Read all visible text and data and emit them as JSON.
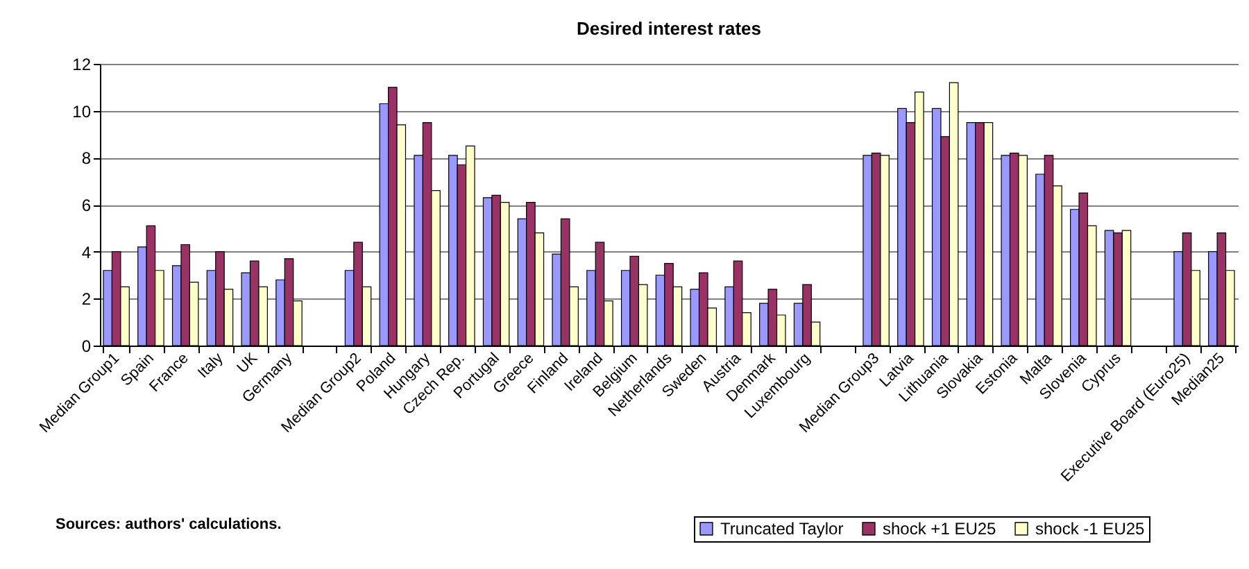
{
  "chart_data": {
    "type": "bar",
    "title": "Desired interest rates",
    "categories": [
      "Median Group1",
      "Spain",
      "France",
      "Italy",
      "UK",
      "Germany",
      null,
      "Median Group2",
      "Poland",
      "Hungary",
      "Czech Rep.",
      "Portugal",
      "Greece",
      "Finland",
      "Ireland",
      "Belgium",
      "Netherlands",
      "Sweden",
      "Austria",
      "Denmark",
      "Luxembourg",
      null,
      "Median Group3",
      "Latvia",
      "Lithuania",
      "Slovakia",
      "Estonia",
      "Malta",
      "Slovenia",
      "Cyprus",
      null,
      "Executive Board (Euro25)",
      "Median25"
    ],
    "series": [
      {
        "name": "Truncated Taylor",
        "color": "#9999ff",
        "values": [
          3.2,
          4.2,
          3.4,
          3.2,
          3.1,
          2.8,
          null,
          3.2,
          10.3,
          8.1,
          8.1,
          6.3,
          5.4,
          3.9,
          3.2,
          3.2,
          3.0,
          2.4,
          2.5,
          1.8,
          1.8,
          null,
          8.1,
          10.1,
          10.1,
          9.5,
          8.1,
          7.3,
          5.8,
          4.9,
          null,
          4.0,
          4.0
        ]
      },
      {
        "name": "shock +1 EU25",
        "color": "#993366",
        "values": [
          4.0,
          5.1,
          4.3,
          4.0,
          3.6,
          3.7,
          null,
          4.4,
          11.0,
          9.5,
          7.7,
          6.4,
          6.1,
          5.4,
          4.4,
          3.8,
          3.5,
          3.1,
          3.6,
          2.4,
          2.6,
          null,
          8.2,
          9.5,
          8.9,
          9.5,
          8.2,
          8.1,
          6.5,
          4.8,
          null,
          4.8,
          4.8
        ]
      },
      {
        "name": "shock -1 EU25",
        "color": "#ffffcc",
        "values": [
          2.5,
          3.2,
          2.7,
          2.4,
          2.5,
          1.9,
          null,
          2.5,
          9.4,
          6.6,
          8.5,
          6.1,
          4.8,
          2.5,
          1.9,
          2.6,
          2.5,
          1.6,
          1.4,
          1.3,
          1.0,
          null,
          8.1,
          10.8,
          11.2,
          9.5,
          8.1,
          6.8,
          5.1,
          4.9,
          null,
          3.2,
          3.2
        ]
      }
    ],
    "ylim": [
      0,
      12
    ],
    "yticks": [
      0,
      2,
      4,
      6,
      8,
      10,
      12
    ],
    "grid": "y",
    "legend": "bottom right",
    "annotations": [
      "Sources: authors' calculations."
    ]
  }
}
